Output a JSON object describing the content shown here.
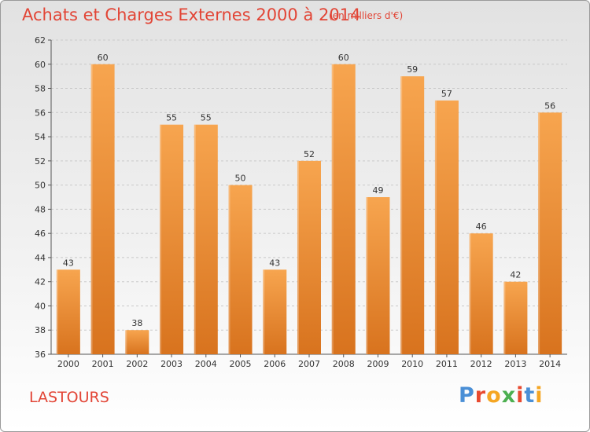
{
  "header": {
    "title": "Achats et Charges Externes 2000 à 2014",
    "unit_note": "(en milliers d'€)"
  },
  "footer": {
    "place": "LASTOURS",
    "logo_text": "Proxiti"
  },
  "colors": {
    "title": "#e24536",
    "bar_light": "#f7a54f",
    "bar_dark": "#d8731e",
    "grid": "#c9c9c9",
    "logo": [
      "#4a8fd6",
      "#e8492f",
      "#f5a623",
      "#4caf50",
      "#e8492f",
      "#4a8fd6",
      "#f5a623"
    ]
  },
  "chart_data": {
    "type": "bar",
    "title": "Achats et Charges Externes 2000 à 2014",
    "categories": [
      "2000",
      "2001",
      "2002",
      "2003",
      "2004",
      "2005",
      "2006",
      "2007",
      "2008",
      "2009",
      "2010",
      "2011",
      "2012",
      "2013",
      "2014"
    ],
    "values": [
      43,
      60,
      38,
      55,
      55,
      50,
      43,
      52,
      60,
      49,
      59,
      57,
      46,
      42,
      56
    ],
    "ylim": [
      36,
      62
    ],
    "yticks": [
      36,
      38,
      40,
      42,
      44,
      46,
      48,
      50,
      52,
      54,
      56,
      58,
      60,
      62
    ],
    "grid": true,
    "xlabel": "",
    "ylabel": ""
  }
}
